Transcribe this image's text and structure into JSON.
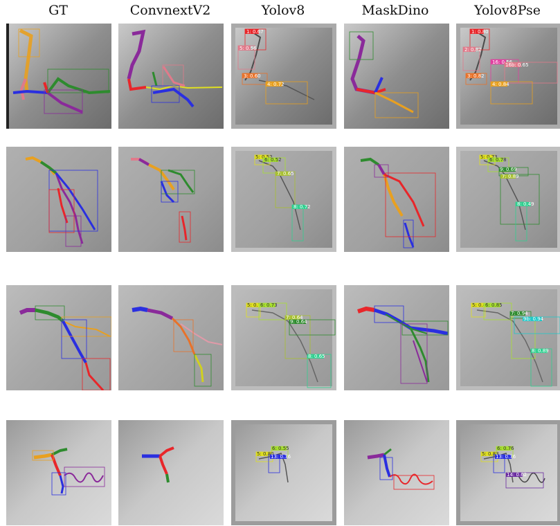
{
  "columns": [
    {
      "key": "gt",
      "label": "GT"
    },
    {
      "key": "convnext",
      "label": "ConvnextV2"
    },
    {
      "key": "yolov8",
      "label": "Yolov8"
    },
    {
      "key": "maskdino",
      "label": "MaskDino"
    },
    {
      "key": "yolov8pse",
      "label": "Yolov8Pse"
    }
  ],
  "rows": [
    {
      "yolov8_labels": [
        "1: 0.67",
        "5: 0.56",
        "3: 0.60",
        "4: 0.72"
      ],
      "yolov8pse_labels": [
        "1: 0.80",
        "2: 0.82",
        "16: 0.56",
        "16b: 0.65",
        "3: 0.82",
        "4: 0.84"
      ]
    },
    {
      "yolov8_labels": [
        "5: 0.52",
        "6: 0.52",
        "7: 0.65",
        "8: 0.72"
      ],
      "yolov8pse_labels": [
        "5: 0.73",
        "6: 0.78",
        "9: 0.69",
        "7: 0.89",
        "8: 0.49"
      ]
    },
    {
      "yolov8_labels": [
        "5: 0.75",
        "6: 0.73",
        "7: 0.64",
        "9: 0.64",
        "8: 0.65"
      ],
      "yolov8pse_labels": [
        "5: 0.80",
        "6: 0.85",
        "7: 0.94",
        "9b: 0.94",
        "8: 0.89"
      ]
    },
    {
      "yolov8_labels": [
        "6: 0.55",
        "5: 0.80",
        "13: 0.76"
      ],
      "yolov8pse_labels": [
        "6: 0.76",
        "5: 0.83",
        "13: 0.76",
        "14: 0.62"
      ]
    }
  ],
  "colors": {
    "red": "#e8262a",
    "blue": "#2a2fe0",
    "green": "#2e8b2e",
    "purple": "#8a2a9a",
    "orange": "#e89a1a",
    "pink": "#e07a8a",
    "yellow": "#e0e020",
    "lime": "#a8e030"
  }
}
